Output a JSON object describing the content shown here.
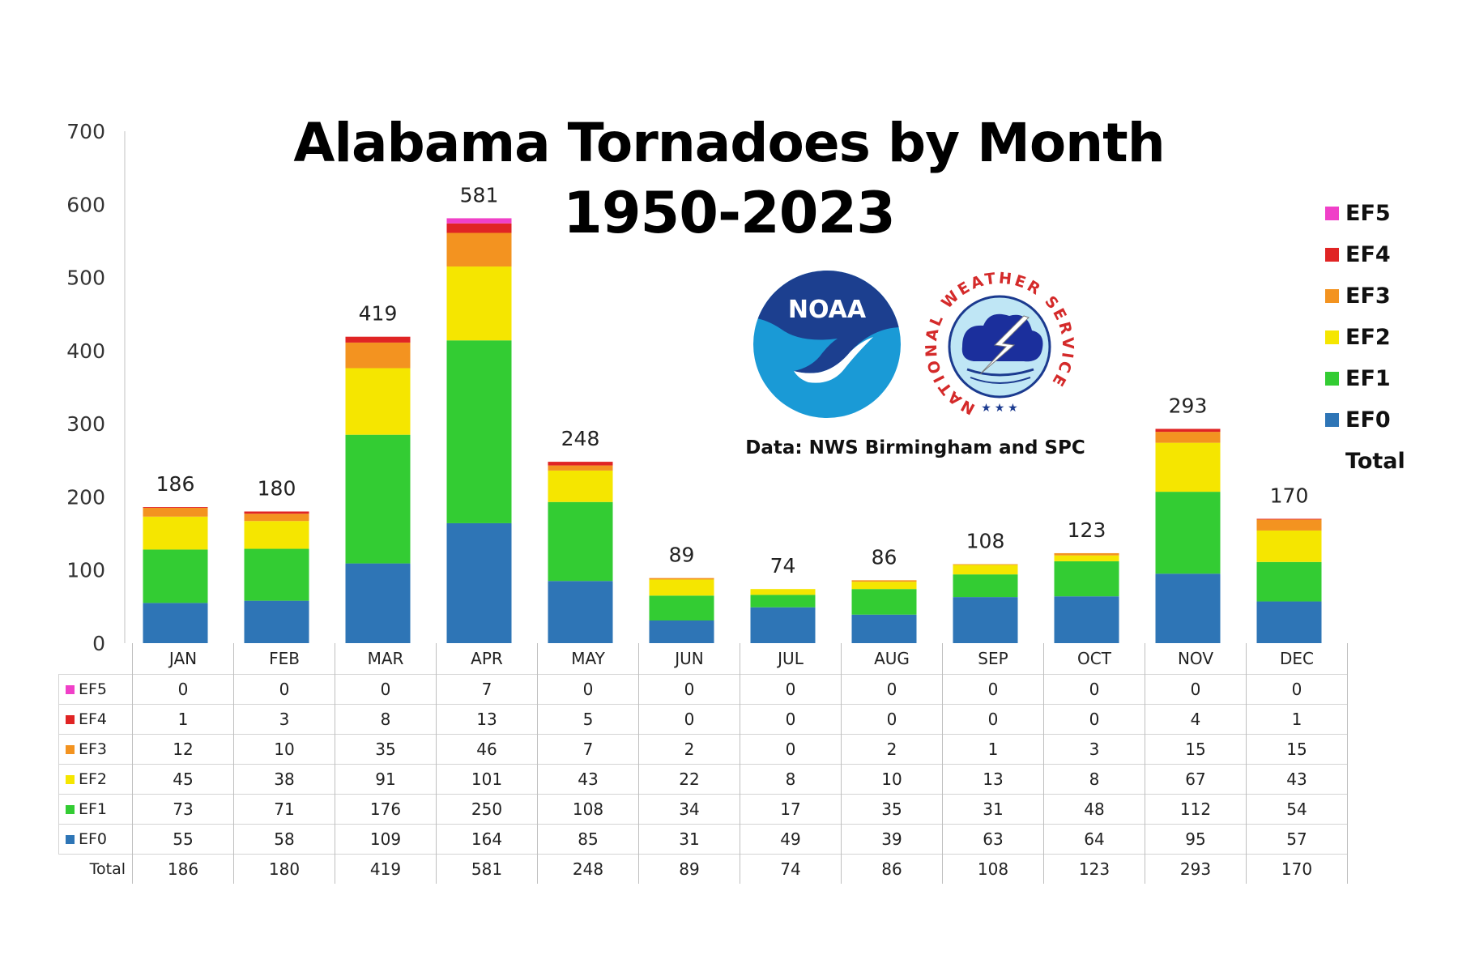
{
  "chart_data": {
    "type": "bar",
    "stacked": true,
    "title": "Alabama Tornadoes by Month",
    "subtitle": "1950-2023",
    "xlabel": "",
    "ylabel": "",
    "ylim": [
      0,
      700
    ],
    "yticks": [
      "0",
      "100",
      "200",
      "300",
      "400",
      "500",
      "600",
      "700"
    ],
    "grid": false,
    "legend_position": "right",
    "categories": [
      "JAN",
      "FEB",
      "MAR",
      "APR",
      "MAY",
      "JUN",
      "JUL",
      "AUG",
      "SEP",
      "OCT",
      "NOV",
      "DEC"
    ],
    "series": [
      {
        "name": "EF0",
        "color": "#2e75b6",
        "values": [
          55,
          58,
          109,
          164,
          85,
          31,
          49,
          39,
          63,
          64,
          95,
          57
        ]
      },
      {
        "name": "EF1",
        "color": "#33cc33",
        "values": [
          73,
          71,
          176,
          250,
          108,
          34,
          17,
          35,
          31,
          48,
          112,
          54
        ]
      },
      {
        "name": "EF2",
        "color": "#f5e600",
        "values": [
          45,
          38,
          91,
          101,
          43,
          22,
          8,
          10,
          13,
          8,
          67,
          43
        ]
      },
      {
        "name": "EF3",
        "color": "#f39320",
        "values": [
          12,
          10,
          35,
          46,
          7,
          2,
          0,
          2,
          1,
          3,
          15,
          15
        ]
      },
      {
        "name": "EF4",
        "color": "#e02424",
        "values": [
          1,
          3,
          8,
          13,
          5,
          0,
          0,
          0,
          0,
          0,
          4,
          1
        ]
      },
      {
        "name": "EF5",
        "color": "#f040c8",
        "values": [
          0,
          0,
          0,
          7,
          0,
          0,
          0,
          0,
          0,
          0,
          0,
          0
        ]
      }
    ],
    "totals": [
      186,
      180,
      419,
      581,
      248,
      89,
      74,
      86,
      108,
      123,
      293,
      170
    ],
    "total_label": "Total",
    "table_rows": [
      "EF5",
      "EF4",
      "EF3",
      "EF2",
      "EF1",
      "EF0"
    ]
  },
  "annotation": {
    "source": "Data: NWS Birmingham and SPC"
  },
  "logos": {
    "noaa": "NOAA",
    "nws_ring": "NATIONAL WEATHER SERVICE"
  }
}
